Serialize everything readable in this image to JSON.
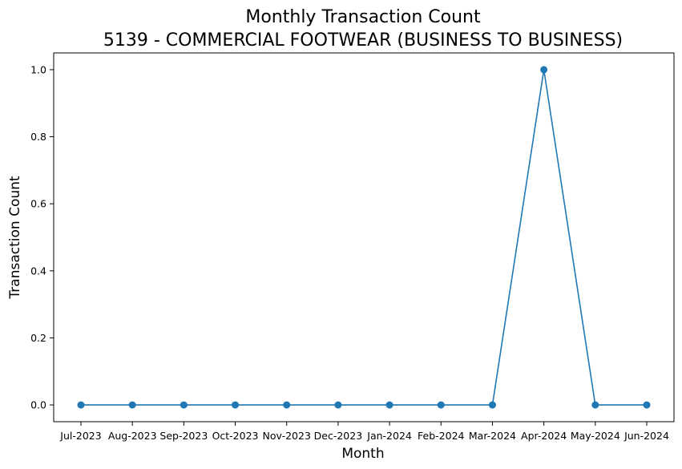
{
  "chart_data": {
    "type": "line",
    "title_line1": "Monthly Transaction Count",
    "title_line2": "5139 - COMMERCIAL FOOTWEAR (BUSINESS TO BUSINESS)",
    "xlabel": "Month",
    "ylabel": "Transaction Count",
    "categories": [
      "Jul-2023",
      "Aug-2023",
      "Sep-2023",
      "Oct-2023",
      "Nov-2023",
      "Dec-2023",
      "Jan-2024",
      "Feb-2024",
      "Mar-2024",
      "Apr-2024",
      "May-2024",
      "Jun-2024"
    ],
    "series": [
      {
        "values": [
          0,
          0,
          0,
          0,
          0,
          0,
          0,
          0,
          0,
          1,
          0,
          0
        ]
      }
    ],
    "ylim": [
      -0.05,
      1.05
    ],
    "yticks": [
      "0.0",
      "0.2",
      "0.4",
      "0.6",
      "0.8",
      "1.0"
    ],
    "ytick_values": [
      0,
      0.2,
      0.4,
      0.6,
      0.8,
      1.0
    ],
    "grid": false,
    "line_color": "#1f77b4",
    "marker": "circle"
  }
}
